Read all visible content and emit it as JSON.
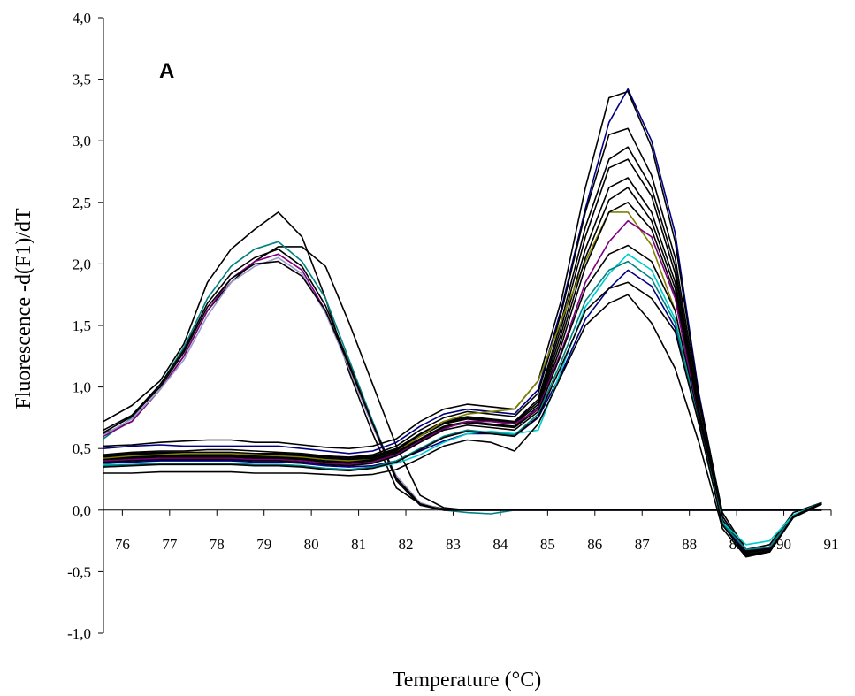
{
  "chart_data": {
    "type": "line",
    "annotation": "A",
    "xlabel": "Temperature (°C)",
    "ylabel": "Fluorescence -d(F1)/dT",
    "xlim": [
      75.6,
      91
    ],
    "ylim": [
      -1.0,
      4.0
    ],
    "y_ticks": [
      -1.0,
      -0.5,
      0.0,
      0.5,
      1.0,
      1.5,
      2.0,
      2.5,
      3.0,
      3.5,
      4.0
    ],
    "y_tick_labels": [
      "-1,0",
      "-0,5",
      "0,0",
      "0,5",
      "1,0",
      "1,5",
      "2,0",
      "2,5",
      "3,0",
      "3,5",
      "4,0"
    ],
    "x_ticks": [
      76,
      77,
      78,
      79,
      80,
      81,
      82,
      83,
      84,
      85,
      86,
      87,
      88,
      89,
      90,
      91
    ],
    "x_tick_labels": [
      "76",
      "77",
      "78",
      "79",
      "80",
      "81",
      "82",
      "83",
      "84",
      "85",
      "86",
      "87",
      "88",
      "89",
      "90",
      "91"
    ],
    "grid": false,
    "legend": "none",
    "x": [
      75.6,
      76.2,
      76.8,
      77.3,
      77.8,
      78.3,
      78.8,
      79.3,
      79.8,
      80.3,
      80.8,
      81.3,
      81.8,
      82.3,
      82.8,
      83.3,
      83.8,
      84.3,
      84.8,
      85.3,
      85.8,
      86.3,
      86.7,
      87.2,
      87.7,
      88.2,
      88.7,
      89.2,
      89.7,
      90.2,
      90.8
    ],
    "series": [
      {
        "color": "#000000",
        "values": [
          0.72,
          0.85,
          1.05,
          1.35,
          1.85,
          2.12,
          2.28,
          2.42,
          2.22,
          1.72,
          1.12,
          0.62,
          0.18,
          0.05,
          0.01,
          0.0,
          0.0,
          0.0,
          0.0,
          0.0,
          0.0,
          0.0,
          0.0,
          0.0,
          0.0,
          0.0,
          0.0,
          0.0,
          0.0,
          0.0,
          0.0
        ]
      },
      {
        "color": "#000000",
        "values": [
          0.62,
          0.72,
          0.98,
          1.25,
          1.62,
          1.85,
          2.02,
          2.14,
          2.14,
          1.98,
          1.52,
          1.02,
          0.52,
          0.12,
          0.02,
          0.0,
          0.0,
          0.0,
          0.0,
          0.0,
          0.0,
          0.0,
          0.0,
          0.0,
          0.0,
          0.0,
          0.0,
          0.0,
          0.0,
          0.0,
          0.0
        ]
      },
      {
        "color": "#008080",
        "values": [
          0.58,
          0.75,
          1.02,
          1.32,
          1.72,
          1.98,
          2.12,
          2.18,
          2.02,
          1.72,
          1.22,
          0.72,
          0.25,
          0.05,
          0.0,
          -0.02,
          -0.03,
          0.0,
          0.0,
          0.0,
          0.0,
          0.0,
          0.0,
          0.0,
          0.0,
          0.0,
          0.0,
          0.0,
          0.0,
          0.0,
          0.0
        ]
      },
      {
        "color": "#800080",
        "values": [
          0.6,
          0.72,
          0.98,
          1.25,
          1.62,
          1.88,
          2.02,
          2.08,
          1.95,
          1.62,
          1.15,
          0.68,
          0.25,
          0.05,
          0.0,
          0.0,
          0.0,
          0.0,
          0.0,
          0.0,
          0.0,
          0.0,
          0.0,
          0.0,
          0.0,
          0.0,
          0.0,
          0.0,
          0.0,
          0.0,
          0.0
        ]
      },
      {
        "color": "#9999cc",
        "values": [
          0.61,
          0.74,
          0.98,
          1.22,
          1.58,
          1.85,
          1.98,
          2.05,
          1.92,
          1.6,
          1.15,
          0.68,
          0.28,
          0.06,
          0.0,
          0.0,
          0.0,
          0.0,
          0.0,
          0.0,
          0.0,
          0.0,
          0.0,
          0.0,
          0.0,
          0.0,
          0.0,
          0.0,
          0.0,
          0.0,
          0.0
        ]
      },
      {
        "color": "#000000",
        "values": [
          0.65,
          0.77,
          1.02,
          1.3,
          1.68,
          1.92,
          2.05,
          2.12,
          1.98,
          1.66,
          1.19,
          0.7,
          0.24,
          0.04,
          0.0,
          0.0,
          0.0,
          0.0,
          0.0,
          0.0,
          0.0,
          0.0,
          0.0,
          0.0,
          0.0,
          0.0,
          0.0,
          0.0,
          0.0,
          0.0,
          0.0
        ]
      },
      {
        "color": "#000000",
        "values": [
          0.63,
          0.76,
          1.0,
          1.28,
          1.65,
          1.88,
          2.0,
          2.02,
          1.9,
          1.62,
          1.17,
          0.7,
          0.26,
          0.05,
          0.0,
          0.0,
          0.0,
          0.0,
          0.0,
          0.0,
          0.0,
          0.0,
          0.0,
          0.0,
          0.0,
          0.0,
          0.0,
          0.0,
          0.0,
          0.0,
          0.0
        ]
      },
      {
        "color": "#000080",
        "values": [
          0.5,
          0.52,
          0.53,
          0.52,
          0.52,
          0.52,
          0.52,
          0.52,
          0.5,
          0.48,
          0.46,
          0.48,
          0.55,
          0.68,
          0.78,
          0.82,
          0.8,
          0.78,
          0.98,
          1.65,
          2.45,
          3.15,
          3.42,
          3.0,
          2.25,
          0.95,
          -0.05,
          -0.35,
          -0.3,
          -0.05,
          0.05
        ]
      },
      {
        "color": "#000000",
        "values": [
          0.52,
          0.53,
          0.55,
          0.56,
          0.57,
          0.57,
          0.55,
          0.55,
          0.53,
          0.51,
          0.5,
          0.52,
          0.58,
          0.72,
          0.82,
          0.86,
          0.84,
          0.82,
          1.05,
          1.72,
          2.62,
          3.35,
          3.4,
          2.95,
          2.18,
          0.92,
          -0.02,
          -0.32,
          -0.28,
          -0.02,
          0.06
        ]
      },
      {
        "color": "#000000",
        "values": [
          0.45,
          0.47,
          0.48,
          0.48,
          0.49,
          0.49,
          0.48,
          0.47,
          0.46,
          0.44,
          0.43,
          0.45,
          0.52,
          0.65,
          0.75,
          0.8,
          0.78,
          0.76,
          0.95,
          1.62,
          2.42,
          3.05,
          3.1,
          2.72,
          2.05,
          0.88,
          -0.05,
          -0.33,
          -0.3,
          -0.04,
          0.05
        ]
      },
      {
        "color": "#000000",
        "values": [
          0.44,
          0.46,
          0.47,
          0.47,
          0.47,
          0.47,
          0.46,
          0.46,
          0.45,
          0.43,
          0.42,
          0.44,
          0.5,
          0.62,
          0.72,
          0.76,
          0.74,
          0.72,
          0.9,
          1.55,
          2.3,
          2.85,
          2.95,
          2.62,
          1.98,
          0.82,
          -0.08,
          -0.34,
          -0.31,
          -0.05,
          0.05
        ]
      },
      {
        "color": "#000000",
        "values": [
          0.43,
          0.45,
          0.46,
          0.46,
          0.46,
          0.46,
          0.45,
          0.45,
          0.44,
          0.42,
          0.41,
          0.43,
          0.49,
          0.61,
          0.71,
          0.75,
          0.73,
          0.71,
          0.88,
          1.5,
          2.22,
          2.78,
          2.85,
          2.55,
          1.92,
          0.8,
          -0.08,
          -0.35,
          -0.32,
          -0.05,
          0.05
        ]
      },
      {
        "color": "#000000",
        "values": [
          0.42,
          0.44,
          0.45,
          0.45,
          0.45,
          0.45,
          0.44,
          0.44,
          0.43,
          0.41,
          0.4,
          0.42,
          0.48,
          0.6,
          0.7,
          0.74,
          0.72,
          0.7,
          0.86,
          1.45,
          2.12,
          2.62,
          2.7,
          2.42,
          1.85,
          0.78,
          -0.1,
          -0.36,
          -0.32,
          -0.06,
          0.05
        ]
      },
      {
        "color": "#808000",
        "values": [
          0.42,
          0.44,
          0.45,
          0.46,
          0.46,
          0.46,
          0.45,
          0.44,
          0.43,
          0.41,
          0.4,
          0.41,
          0.47,
          0.6,
          0.72,
          0.78,
          0.8,
          0.82,
          1.05,
          1.55,
          2.02,
          2.42,
          2.42,
          2.15,
          1.62,
          0.72,
          -0.12,
          -0.36,
          -0.33,
          -0.06,
          0.05
        ]
      },
      {
        "color": "#000000",
        "values": [
          0.41,
          0.43,
          0.44,
          0.44,
          0.44,
          0.44,
          0.43,
          0.43,
          0.42,
          0.4,
          0.39,
          0.41,
          0.47,
          0.58,
          0.68,
          0.72,
          0.7,
          0.68,
          0.84,
          1.4,
          2.05,
          2.52,
          2.62,
          2.35,
          1.8,
          0.76,
          -0.1,
          -0.36,
          -0.33,
          -0.06,
          0.05
        ]
      },
      {
        "color": "#000000",
        "values": [
          0.4,
          0.42,
          0.43,
          0.43,
          0.43,
          0.43,
          0.42,
          0.42,
          0.41,
          0.39,
          0.38,
          0.4,
          0.46,
          0.57,
          0.67,
          0.71,
          0.69,
          0.67,
          0.82,
          1.35,
          1.98,
          2.42,
          2.5,
          2.28,
          1.75,
          0.75,
          -0.11,
          -0.37,
          -0.33,
          -0.06,
          0.05
        ]
      },
      {
        "color": "#800080",
        "values": [
          0.4,
          0.41,
          0.42,
          0.42,
          0.42,
          0.42,
          0.41,
          0.41,
          0.4,
          0.38,
          0.37,
          0.39,
          0.45,
          0.56,
          0.66,
          0.72,
          0.72,
          0.7,
          0.82,
          1.3,
          1.85,
          2.18,
          2.35,
          2.22,
          1.72,
          0.72,
          -0.12,
          -0.32,
          -0.3,
          -0.05,
          0.05
        ]
      },
      {
        "color": "#000000",
        "values": [
          0.39,
          0.4,
          0.41,
          0.41,
          0.41,
          0.41,
          0.4,
          0.4,
          0.39,
          0.37,
          0.36,
          0.38,
          0.44,
          0.55,
          0.65,
          0.69,
          0.67,
          0.65,
          0.8,
          1.28,
          1.8,
          2.08,
          2.15,
          2.02,
          1.62,
          0.72,
          -0.12,
          -0.37,
          -0.34,
          -0.06,
          0.05
        ]
      },
      {
        "color": "#000080",
        "values": [
          0.38,
          0.39,
          0.4,
          0.4,
          0.4,
          0.4,
          0.39,
          0.39,
          0.38,
          0.36,
          0.35,
          0.36,
          0.4,
          0.48,
          0.56,
          0.62,
          0.62,
          0.6,
          0.75,
          1.12,
          1.55,
          1.8,
          1.95,
          1.82,
          1.48,
          0.7,
          -0.1,
          -0.36,
          -0.34,
          -0.05,
          0.06
        ]
      },
      {
        "color": "#00cccc",
        "values": [
          0.37,
          0.37,
          0.37,
          0.37,
          0.37,
          0.37,
          0.37,
          0.37,
          0.36,
          0.34,
          0.33,
          0.34,
          0.38,
          0.45,
          0.55,
          0.62,
          0.64,
          0.62,
          0.65,
          1.15,
          1.65,
          1.92,
          2.08,
          1.95,
          1.55,
          0.7,
          -0.1,
          -0.28,
          -0.25,
          -0.04,
          0.06
        ]
      },
      {
        "color": "#008080",
        "values": [
          0.36,
          0.37,
          0.38,
          0.38,
          0.38,
          0.38,
          0.37,
          0.37,
          0.36,
          0.34,
          0.33,
          0.35,
          0.4,
          0.5,
          0.6,
          0.65,
          0.63,
          0.61,
          0.78,
          1.22,
          1.7,
          1.95,
          2.02,
          1.88,
          1.52,
          0.7,
          -0.11,
          -0.32,
          -0.3,
          -0.05,
          0.06
        ]
      },
      {
        "color": "#000000",
        "values": [
          0.35,
          0.36,
          0.37,
          0.37,
          0.37,
          0.37,
          0.36,
          0.36,
          0.35,
          0.33,
          0.32,
          0.34,
          0.39,
          0.49,
          0.59,
          0.64,
          0.62,
          0.6,
          0.76,
          1.18,
          1.62,
          1.8,
          1.85,
          1.72,
          1.45,
          0.7,
          -0.12,
          -0.36,
          -0.34,
          -0.05,
          0.06
        ]
      },
      {
        "color": "#000000",
        "values": [
          0.3,
          0.3,
          0.31,
          0.31,
          0.31,
          0.31,
          0.3,
          0.3,
          0.3,
          0.29,
          0.28,
          0.29,
          0.33,
          0.42,
          0.52,
          0.57,
          0.55,
          0.48,
          0.7,
          1.1,
          1.5,
          1.68,
          1.75,
          1.52,
          1.15,
          0.55,
          -0.15,
          -0.38,
          -0.34,
          -0.06,
          0.05
        ]
      }
    ]
  }
}
